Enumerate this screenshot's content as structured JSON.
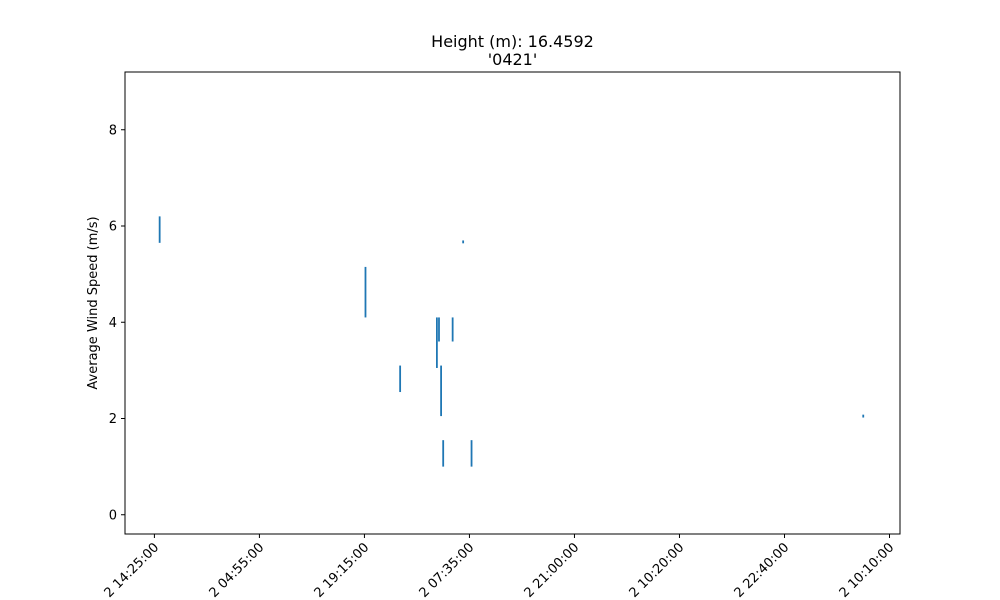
{
  "chart_data": {
    "type": "line",
    "title": "Height (m): 16.4592",
    "subtitle": "'0421'",
    "xlabel": "",
    "ylabel": "Average Wind Speed (m/s)",
    "ylim": [
      -0.4,
      9.2
    ],
    "yticks": [
      0,
      2,
      4,
      6,
      8
    ],
    "xticks": [
      {
        "label": "2 14:25:00",
        "pos": 0
      },
      {
        "label": "2 04:55:00",
        "pos": 1
      },
      {
        "label": "2 19:15:00",
        "pos": 2
      },
      {
        "label": "2 07:35:00",
        "pos": 3
      },
      {
        "label": "2 21:00:00",
        "pos": 4
      },
      {
        "label": "2 10:20:00",
        "pos": 5
      },
      {
        "label": "2 22:40:00",
        "pos": 6
      },
      {
        "label": "2 10:10:00",
        "pos": 7
      }
    ],
    "xlim": [
      -0.28,
      7.1
    ],
    "series_color": "#1f77b4",
    "grid": false,
    "segments": [
      {
        "x": 0.05,
        "y": [
          5.65,
          6.2
        ]
      },
      {
        "x": 2.01,
        "y": [
          4.1,
          5.15
        ]
      },
      {
        "x": 2.34,
        "y": [
          2.55,
          3.1
        ]
      },
      {
        "x": 2.69,
        "y": [
          3.05,
          4.1
        ]
      },
      {
        "x": 2.71,
        "y": [
          3.6,
          4.1
        ]
      },
      {
        "x": 2.73,
        "y": [
          2.05,
          3.1
        ]
      },
      {
        "x": 2.75,
        "y": [
          1.0,
          1.55
        ]
      },
      {
        "x": 2.84,
        "y": [
          3.6,
          4.1
        ]
      },
      {
        "x": 2.94,
        "y": [
          5.64,
          5.7
        ]
      },
      {
        "x": 3.02,
        "y": [
          1.0,
          1.55
        ]
      },
      {
        "x": 6.75,
        "y": [
          2.02,
          2.08
        ]
      }
    ]
  }
}
